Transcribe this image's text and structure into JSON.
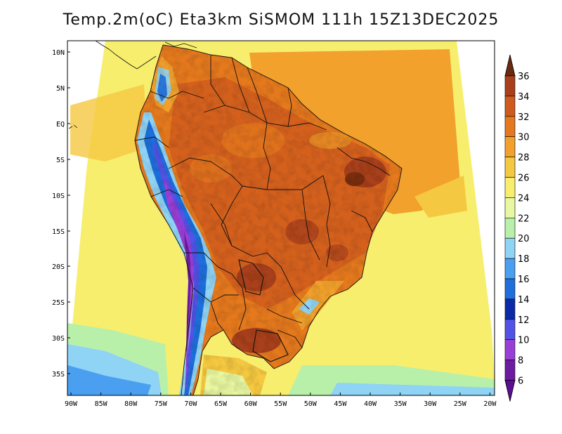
{
  "title": "Temp.2m(oC) Eta3km SiSMOM 111h 15Z13DEC2025",
  "map": {
    "lat_labels": [
      "10N",
      "5N",
      "EQ",
      "5S",
      "10S",
      "15S",
      "20S",
      "25S",
      "30S",
      "35S"
    ],
    "lon_labels": [
      "90W",
      "85W",
      "80W",
      "75W",
      "70W",
      "65W",
      "60W",
      "55W",
      "50W",
      "45W",
      "40W",
      "35W",
      "30W",
      "25W",
      "20W"
    ]
  },
  "colorbar": {
    "labels": [
      "36",
      "34",
      "32",
      "30",
      "28",
      "26",
      "24",
      "22",
      "20",
      "18",
      "16",
      "14",
      "12",
      "10",
      "8",
      "6"
    ],
    "colors": [
      "#7a2e0e",
      "#a8401b",
      "#cf5a1e",
      "#e5791f",
      "#f1a12c",
      "#f5c841",
      "#f7ee6e",
      "#e8f7a0",
      "#b8f0aa",
      "#8fd3f5",
      "#4a9ff0",
      "#1e6fdc",
      "#0b2aa8",
      "#5252e6",
      "#9a3fd6",
      "#6d1ba0"
    ],
    "top_color": "#6a2a10",
    "bottom_color": "#5a1090"
  }
}
